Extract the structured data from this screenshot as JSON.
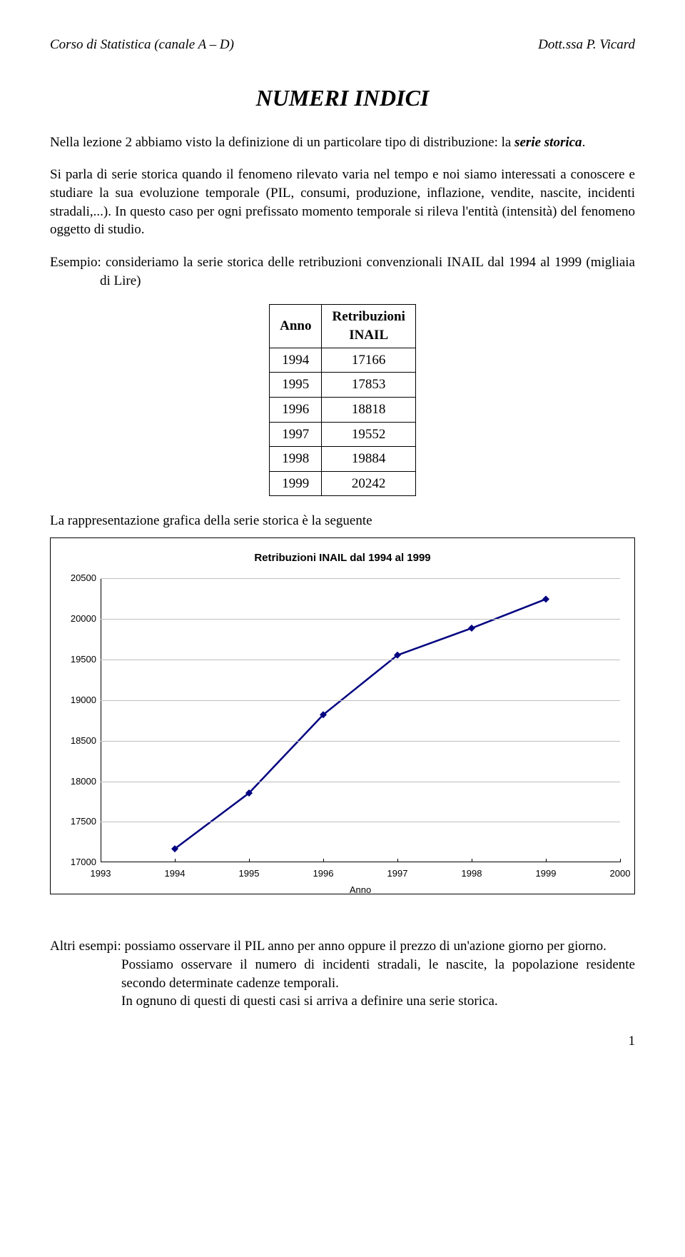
{
  "header": {
    "left": "Corso di Statistica (canale A – D)",
    "right": "Dott.ssa P. Vicard"
  },
  "title": "NUMERI INDICI",
  "para1_a": "Nella lezione 2 abbiamo visto la definizione di un particolare tipo di distribuzione: la ",
  "para1_b": "serie storica",
  "para1_c": ".",
  "para2": "Si parla di serie storica quando il fenomeno rilevato varia nel tempo e noi siamo interessati a conoscere e studiare la sua evoluzione temporale (PIL, consumi, produzione, inflazione, vendite, nascite, incidenti stradali,...). In questo caso per ogni prefissato momento temporale si rileva l'entità (intensità) del fenomeno oggetto di studio.",
  "para3": "Esempio: consideriamo la serie storica delle retribuzioni convenzionali INAIL dal 1994 al 1999 (migliaia di Lire)",
  "table": {
    "col1": "Anno",
    "col2a": "Retribuzioni",
    "col2b": "INAIL",
    "rows": [
      [
        "1994",
        "17166"
      ],
      [
        "1995",
        "17853"
      ],
      [
        "1996",
        "18818"
      ],
      [
        "1997",
        "19552"
      ],
      [
        "1998",
        "19884"
      ],
      [
        "1999",
        "20242"
      ]
    ]
  },
  "para4": "La rappresentazione grafica della serie storica è la seguente",
  "chart": {
    "type": "line-scatter",
    "title": "Retribuzioni INAIL dal 1994 al 1999",
    "xaxis_label": "Anno",
    "xlim": [
      1993,
      2000
    ],
    "xtick_step": 1,
    "xticks": [
      1993,
      1994,
      1995,
      1996,
      1997,
      1998,
      1999,
      2000
    ],
    "ylim": [
      17000,
      20500
    ],
    "ytick_step": 500,
    "yticks": [
      17000,
      17500,
      18000,
      18500,
      19000,
      19500,
      20000,
      20500
    ],
    "series_x": [
      1994,
      1995,
      1996,
      1997,
      1998,
      1999
    ],
    "series_y": [
      17166,
      17853,
      18818,
      19552,
      19884,
      20242
    ],
    "line_color": "#000080",
    "line_width": 2.5,
    "marker_shape": "diamond",
    "marker_size": 10,
    "marker_color": "#000080",
    "grid_color": "#bfbfbf",
    "background_color": "#ffffff",
    "tick_font": "Arial",
    "tick_fontsize": 13,
    "title_fontsize": 15
  },
  "para5a": "Altri esempi: possiamo osservare il PIL anno per anno oppure il prezzo di un'azione giorno per giorno.",
  "para5b": "Possiamo osservare il numero di incidenti stradali, le nascite, la popolazione residente secondo determinate cadenze temporali.",
  "para5c": "In ognuno di questi di questi casi si arriva a definire una serie storica.",
  "page_number": "1"
}
